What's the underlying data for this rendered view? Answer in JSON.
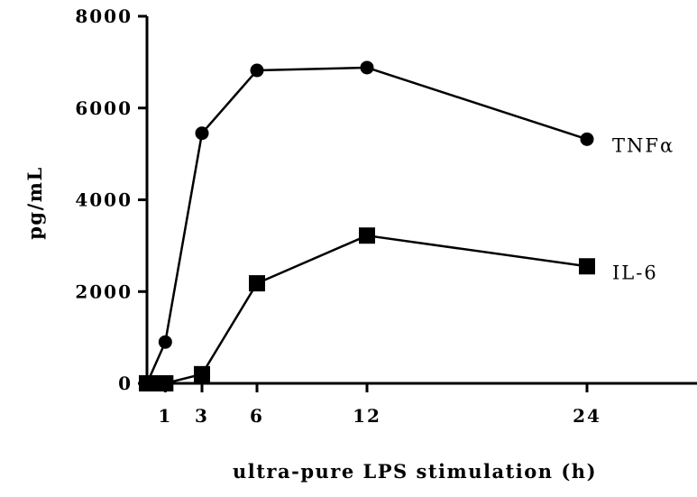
{
  "chart_data": {
    "type": "line",
    "xlabel": "ultra-pure LPS stimulation (h)",
    "ylabel": "pg/mL",
    "ylim": [
      0,
      8000
    ],
    "xlim": [
      0,
      30
    ],
    "yticks": [
      0,
      2000,
      4000,
      6000,
      8000
    ],
    "xticks": [
      1,
      3,
      6,
      12,
      24
    ],
    "grid": false,
    "series": [
      {
        "name": "TNFα",
        "marker": "circle",
        "x": [
          0,
          1,
          3,
          6,
          12,
          24
        ],
        "values": [
          0,
          900,
          5450,
          6820,
          6880,
          5320
        ]
      },
      {
        "name": "IL-6",
        "marker": "square",
        "x": [
          0,
          0.5,
          1,
          3,
          6,
          12,
          24
        ],
        "values": [
          0,
          0,
          0,
          200,
          2180,
          3220,
          2550
        ]
      }
    ],
    "color": "#000000"
  }
}
